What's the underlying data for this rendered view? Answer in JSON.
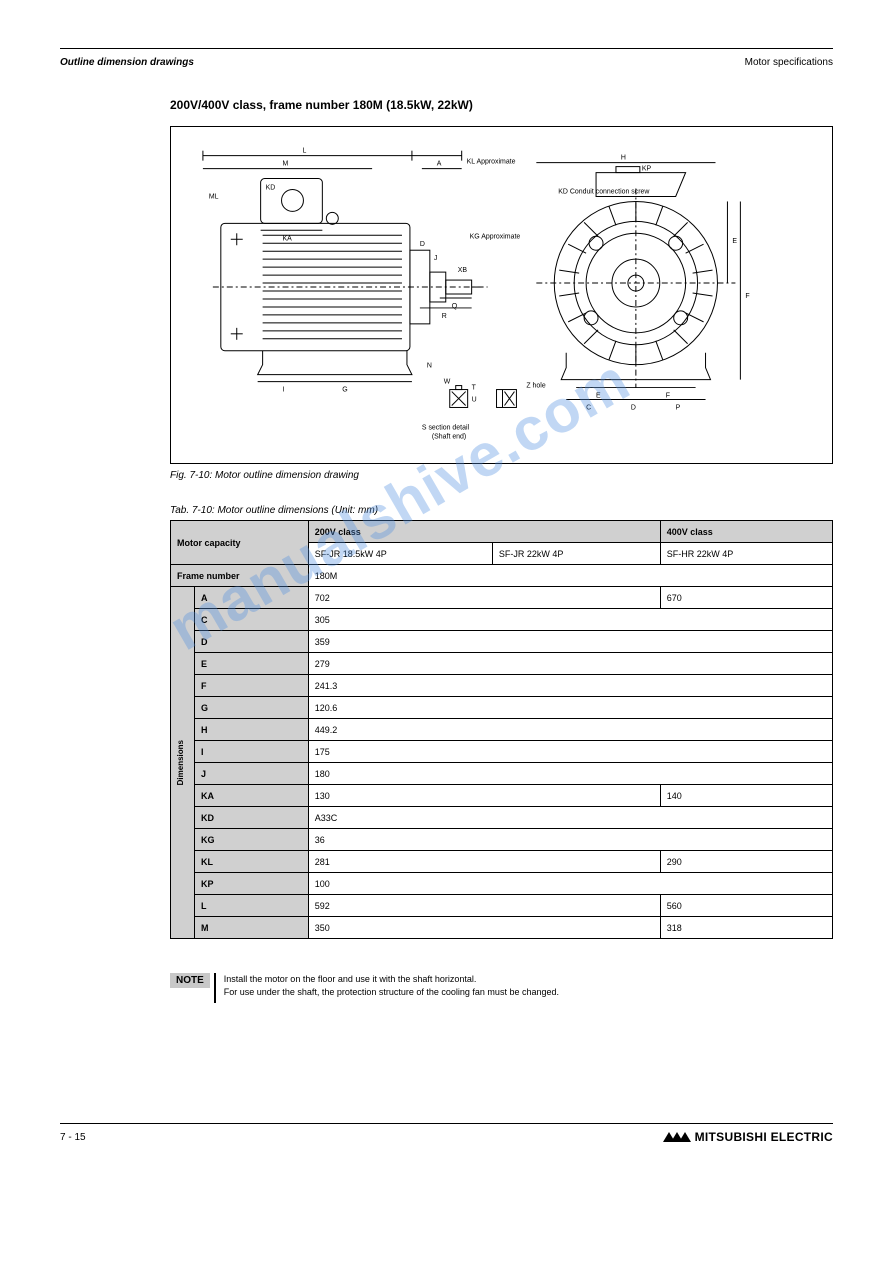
{
  "header": {
    "chapter": "Outline dimension drawings",
    "right": "Motor specifications"
  },
  "sectionTitle": "200V/400V class, frame number 180M (18.5kW, 22kW)",
  "figure": {
    "labels": {
      "L": "L",
      "KL": "KL",
      "M": "M",
      "A": "A",
      "KD": "KD",
      "KA": "KA",
      "ML": "ML",
      "D_top": "D",
      "J": "J",
      "XB": "XB",
      "R": "R",
      "Q": "Q",
      "W": "W",
      "U": "U",
      "T": "T",
      "N": "N",
      "I": "I",
      "G": "G",
      "H": "H",
      "E": "E",
      "F": "F",
      "S_detail": "S section detail\n(Shaft end)",
      "KP": "KP",
      "left_KL": "KL Approximate",
      "KG": "KG Approximate",
      "KD_conduit": "KD Conduit connection screw",
      "E_bottom": "E",
      "F_bottom": "F",
      "C": "C",
      "D_bottom": "D",
      "P_bottom": "P",
      "Z_hole": "Z hole"
    },
    "caption": "Fig. 7-10: Motor outline dimension drawing"
  },
  "table": {
    "label": "Tab. 7-10: Motor outline dimensions (Unit: mm)",
    "head": {
      "motorCap": "Motor capacity",
      "v200": "200V class",
      "v400": "400V class",
      "c1": "SF-JR 18.5kW 4P",
      "c2": "SF-JR 22kW 4P",
      "c3": "SF-HR 22kW 4P",
      "frameNo": "Frame number",
      "frameVal": "180M",
      "dims": "Dimensions"
    },
    "rows": [
      {
        "k": "A",
        "v12": "702",
        "v3": "670"
      },
      {
        "k": "C",
        "v": "305"
      },
      {
        "k": "D",
        "v": "359"
      },
      {
        "k": "E",
        "v": "279"
      },
      {
        "k": "F",
        "v": "241.3"
      },
      {
        "k": "G",
        "v": "120.6"
      },
      {
        "k": "H",
        "v": "449.2"
      },
      {
        "k": "I",
        "v": "175"
      },
      {
        "k": "J",
        "v": "180"
      },
      {
        "k": "KA",
        "v12": "130",
        "v3": "140"
      },
      {
        "k": "KD",
        "v": "A33C"
      },
      {
        "k": "KG",
        "v": "36"
      },
      {
        "k": "KL",
        "v12": "281",
        "v3": "290"
      },
      {
        "k": "KP",
        "v": "100"
      },
      {
        "k": "L",
        "v12": "592",
        "v3": "560"
      }
    ],
    "rows2": [
      {
        "k": "M",
        "v12": "350",
        "v3": "318"
      }
    ]
  },
  "note": {
    "badge": "NOTE",
    "text": "Install the motor on the floor and use it with the shaft horizontal.\nFor use under the shaft, the protection structure of the cooling fan must be changed."
  },
  "footer": {
    "page": "7 - 15",
    "brand": "MITSUBISHI ELECTRIC"
  },
  "watermark": "manualshive.com"
}
